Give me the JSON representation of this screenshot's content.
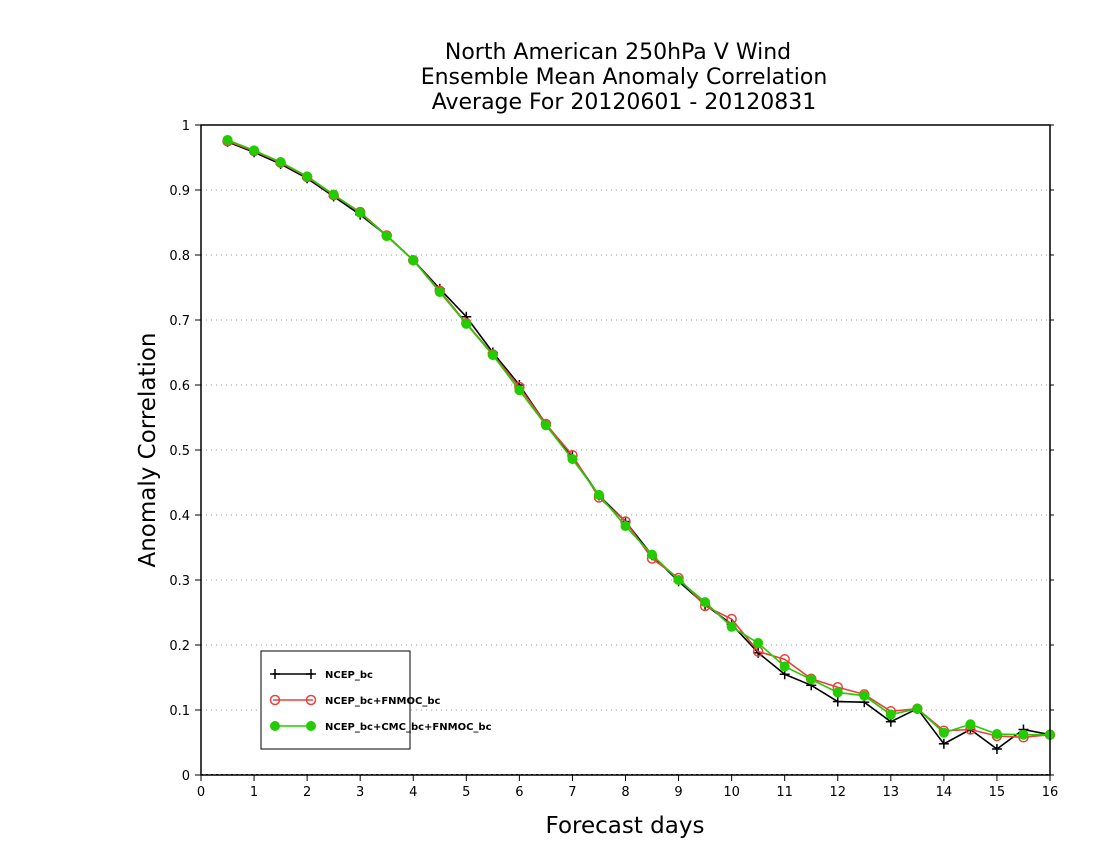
{
  "chart_data": {
    "type": "line",
    "title": [
      "North American 250hPa V Wind",
      "Ensemble Mean Anomaly Correlation",
      "Average For 20120601 - 20120831"
    ],
    "xlabel": "Forecast days",
    "ylabel": "Anomaly Correlation",
    "xlim": [
      0,
      16
    ],
    "ylim": [
      0,
      1
    ],
    "xticks": [
      "0",
      "1",
      "2",
      "3",
      "4",
      "5",
      "6",
      "7",
      "8",
      "9",
      "10",
      "11",
      "12",
      "13",
      "14",
      "15",
      "16"
    ],
    "yticks": [
      "0",
      "0.1",
      "0.2",
      "0.3",
      "0.4",
      "0.5",
      "0.6",
      "0.7",
      "0.8",
      "0.9",
      "1"
    ],
    "grid": "horizontal-dotted",
    "legend_position": "bottom-left",
    "x": [
      0.5,
      1,
      1.5,
      2,
      2.5,
      3,
      3.5,
      4,
      4.5,
      5,
      5.5,
      6,
      6.5,
      7,
      7.5,
      8,
      8.5,
      9,
      9.5,
      10,
      10.5,
      11,
      11.5,
      12,
      12.5,
      13,
      13.5,
      14,
      14.5,
      15,
      15.5,
      16
    ],
    "series": [
      {
        "name": "NCEP_bc",
        "color": "#000000",
        "marker": "plus",
        "values": [
          0.974,
          0.958,
          0.94,
          0.918,
          0.89,
          0.862,
          0.83,
          0.792,
          0.748,
          0.705,
          0.65,
          0.6,
          0.54,
          0.49,
          0.43,
          0.39,
          0.338,
          0.298,
          0.262,
          0.232,
          0.188,
          0.155,
          0.138,
          0.113,
          0.112,
          0.082,
          0.102,
          0.048,
          0.07,
          0.04,
          0.07,
          0.062
        ]
      },
      {
        "name": "NCEP_bc+FNMOC_bc",
        "color": "#e8413c",
        "marker": "open-circle",
        "values": [
          0.975,
          0.96,
          0.942,
          0.92,
          0.892,
          0.866,
          0.83,
          0.792,
          0.745,
          0.695,
          0.647,
          0.597,
          0.54,
          0.492,
          0.427,
          0.39,
          0.333,
          0.303,
          0.26,
          0.24,
          0.19,
          0.178,
          0.148,
          0.135,
          0.124,
          0.098,
          0.102,
          0.068,
          0.07,
          0.06,
          0.058,
          0.062
        ]
      },
      {
        "name": "NCEP_bc+CMC_bc+FNMOC_bc",
        "color": "#22cc00",
        "marker": "filled-circle",
        "values": [
          0.977,
          0.961,
          0.943,
          0.921,
          0.893,
          0.865,
          0.829,
          0.792,
          0.743,
          0.694,
          0.646,
          0.592,
          0.538,
          0.486,
          0.431,
          0.383,
          0.339,
          0.3,
          0.266,
          0.228,
          0.203,
          0.167,
          0.147,
          0.127,
          0.122,
          0.093,
          0.102,
          0.065,
          0.078,
          0.063,
          0.062,
          0.062
        ]
      }
    ]
  }
}
